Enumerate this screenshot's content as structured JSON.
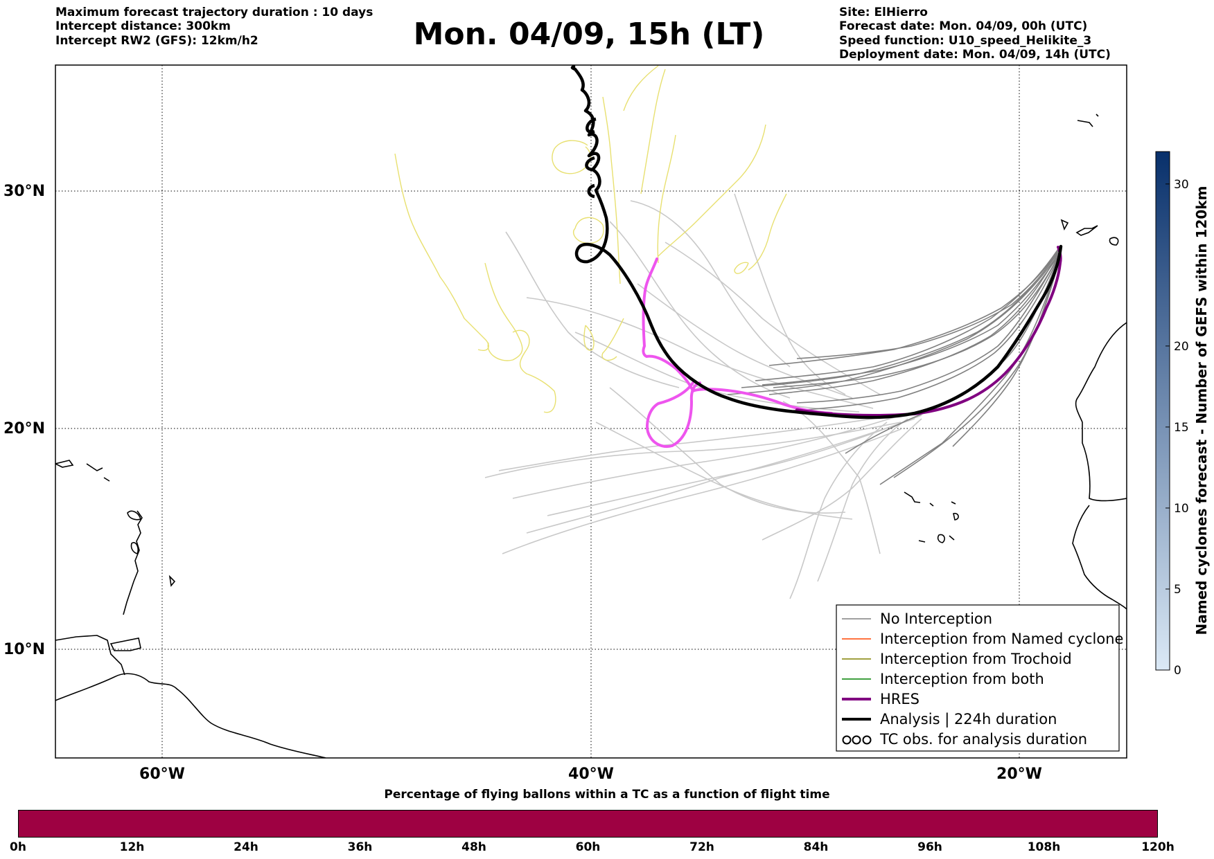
{
  "header": {
    "left_info": [
      "Maximum forecast trajectory duration : 10 days",
      "Intercept distance: 300km",
      "Intercept RW2 (GFS):  12km/h2"
    ],
    "title": "Mon. 04/09, 15h (LT)",
    "right_info": [
      "Site: ElHierro",
      "Forecast date: Mon. 04/09, 00h (UTC)",
      "Speed function: U10_speed_Helikite_3",
      "Deployment date: Mon. 04/09, 14h (UTC)"
    ]
  },
  "map": {
    "lon_range": [
      -65,
      -15
    ],
    "lat_range": [
      5,
      34
    ],
    "lat_labels": [
      {
        "lat": 30,
        "text": "30°N"
      },
      {
        "lat": 20,
        "text": "20°N"
      },
      {
        "lat": 10,
        "text": "10°N"
      }
    ],
    "lon_labels": [
      {
        "lon": -60,
        "text": "60°W"
      },
      {
        "lon": -40,
        "text": "40°W"
      },
      {
        "lon": -20,
        "text": "20°W"
      }
    ],
    "colors": {
      "no_interception": "#808080",
      "named_cyclone": "#ff4500",
      "trochoid": "#808000",
      "both": "#008000",
      "hres": "#800080",
      "hres_highlight": "#ee55ee",
      "analysis": "#000000",
      "tc_obs": "#e8e070",
      "ensemble_far": "#c8c8c8"
    }
  },
  "legend": {
    "items": [
      {
        "label": "No Interception",
        "kind": "thin",
        "color": "#808080"
      },
      {
        "label": "Interception from Named cyclone",
        "kind": "thin",
        "color": "#ff4500"
      },
      {
        "label": "Interception from Trochoid",
        "kind": "thin",
        "color": "#808000"
      },
      {
        "label": "Interception from both",
        "kind": "thin",
        "color": "#008000"
      },
      {
        "label": "HRES",
        "kind": "thick",
        "color": "#800080"
      },
      {
        "label": "Analysis | 224h duration",
        "kind": "thick",
        "color": "#000000"
      },
      {
        "label": "TC obs. for analysis duration",
        "kind": "loops",
        "color": "#000000"
      }
    ]
  },
  "colorbar": {
    "label": "Named cyclones forecast - Number of GEFS within 120km",
    "min": 0,
    "max": 32,
    "ticks": [
      0,
      5,
      10,
      15,
      20,
      30
    ],
    "color_low": "#dbe9f6",
    "color_high": "#08306b"
  },
  "bottom_bar": {
    "title": "Percentage of flying ballons within a TC as a function of flight time",
    "color": "#9e0142",
    "ticks": [
      "0h",
      "12h",
      "24h",
      "36h",
      "48h",
      "60h",
      "72h",
      "84h",
      "96h",
      "108h",
      "120h"
    ]
  }
}
